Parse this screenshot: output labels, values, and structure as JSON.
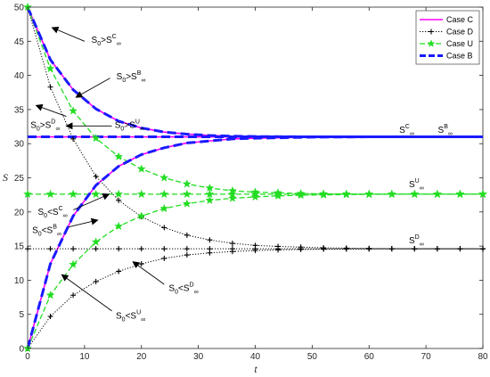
{
  "chart_data": {
    "type": "line",
    "title": "",
    "xlabel": "t",
    "ylabel": "S",
    "xlim": [
      0,
      80
    ],
    "ylim": [
      0,
      50
    ],
    "xticks": [
      0,
      10,
      20,
      30,
      40,
      50,
      60,
      70,
      80
    ],
    "yticks": [
      0,
      5,
      10,
      15,
      20,
      25,
      30,
      35,
      40,
      45,
      50
    ],
    "grid": false,
    "legend_position": "top-right",
    "series": [
      {
        "name": "Case C",
        "color": "#ff00ff",
        "style": "solid",
        "marker": "none",
        "equilibrium": 31.0,
        "curves": [
          {
            "x": [
              0,
              4,
              8,
              12,
              16,
              20,
              24,
              28,
              32,
              36,
              40,
              50,
              60,
              70,
              80
            ],
            "y": [
              50,
              42.3,
              37.9,
              35.1,
              33.3,
              32.3,
              31.7,
              31.4,
              31.2,
              31.1,
              31.05,
              31.0,
              31.0,
              31.0,
              31.0
            ]
          },
          {
            "x": [
              0,
              4,
              8,
              12,
              16,
              20,
              24,
              28,
              32,
              36,
              40,
              50,
              60,
              70,
              80
            ],
            "y": [
              0,
              12.4,
              19.4,
              23.9,
              26.7,
              28.4,
              29.4,
              30.1,
              30.4,
              30.7,
              30.8,
              30.95,
              31.0,
              31.0,
              31.0
            ]
          },
          {
            "x": [
              0,
              80
            ],
            "y": [
              31,
              31
            ]
          }
        ]
      },
      {
        "name": "Case D",
        "color": "#000000",
        "style": "dotted",
        "marker": "+",
        "equilibrium": 14.6,
        "curves": [
          {
            "x": [
              0,
              4,
              8,
              12,
              16,
              20,
              24,
              28,
              32,
              36,
              40,
              44,
              48,
              52,
              56,
              60,
              64,
              68,
              72,
              76,
              80
            ],
            "y": [
              50,
              38.3,
              30.7,
              25.2,
              21.7,
              19.3,
              17.7,
              16.6,
              15.9,
              15.4,
              15.1,
              14.95,
              14.85,
              14.75,
              14.7,
              14.65,
              14.62,
              14.6,
              14.6,
              14.6,
              14.6
            ]
          },
          {
            "x": [
              0,
              4,
              8,
              12,
              16,
              20,
              24,
              28,
              32,
              36,
              40,
              44,
              48,
              52,
              56,
              60,
              64,
              68,
              72,
              76,
              80
            ],
            "y": [
              0,
              4.7,
              7.8,
              9.8,
              11.3,
              12.4,
              13.2,
              13.7,
              14.0,
              14.2,
              14.35,
              14.45,
              14.5,
              14.55,
              14.57,
              14.58,
              14.6,
              14.6,
              14.6,
              14.6,
              14.6
            ]
          },
          {
            "x": [
              0,
              4,
              8,
              12,
              16,
              20,
              24,
              28,
              32,
              36,
              40,
              44,
              48,
              52,
              56,
              60,
              64,
              68,
              72,
              76,
              80
            ],
            "y": [
              14.6,
              14.6,
              14.6,
              14.6,
              14.6,
              14.6,
              14.6,
              14.6,
              14.6,
              14.6,
              14.6,
              14.6,
              14.6,
              14.6,
              14.6,
              14.6,
              14.6,
              14.6,
              14.6,
              14.6,
              14.6
            ]
          }
        ]
      },
      {
        "name": "Case U",
        "color": "#22dd22",
        "style": "dashed",
        "marker": "star",
        "equilibrium": 22.6,
        "curves": [
          {
            "x": [
              0,
              4,
              8,
              12,
              16,
              20,
              24,
              28,
              32,
              36,
              40,
              44,
              48,
              52,
              56,
              60,
              64,
              68,
              72,
              76,
              80
            ],
            "y": [
              50,
              41.0,
              34.8,
              30.8,
              28.1,
              26.3,
              25.0,
              24.1,
              23.5,
              23.1,
              22.9,
              22.8,
              22.7,
              22.65,
              22.62,
              22.6,
              22.6,
              22.6,
              22.6,
              22.6,
              22.6
            ]
          },
          {
            "x": [
              0,
              4,
              8,
              12,
              16,
              20,
              24,
              28,
              32,
              36,
              40,
              44,
              48,
              52,
              56,
              60,
              64,
              68,
              72,
              76,
              80
            ],
            "y": [
              0,
              7.8,
              12.3,
              15.6,
              17.9,
              19.4,
              20.5,
              21.2,
              21.7,
              22.0,
              22.2,
              22.35,
              22.45,
              22.5,
              22.55,
              22.58,
              22.6,
              22.6,
              22.6,
              22.6,
              22.6
            ]
          },
          {
            "x": [
              0,
              4,
              8,
              12,
              16,
              20,
              24,
              28,
              32,
              36,
              40,
              44,
              48,
              52,
              56,
              60,
              64,
              68,
              72,
              76,
              80
            ],
            "y": [
              22.6,
              22.6,
              22.6,
              22.6,
              22.6,
              22.6,
              22.6,
              22.6,
              22.6,
              22.6,
              22.6,
              22.6,
              22.6,
              22.6,
              22.6,
              22.6,
              22.6,
              22.6,
              22.6,
              22.6,
              22.6
            ]
          }
        ]
      },
      {
        "name": "Case B",
        "color": "#1a1aff",
        "style": "dashed",
        "marker": "none",
        "equilibrium": 31.0,
        "curves": [
          {
            "x": [
              0,
              4,
              8,
              12,
              16,
              20,
              24,
              28,
              32,
              36,
              40,
              50,
              60,
              70,
              80
            ],
            "y": [
              50,
              42.3,
              37.9,
              35.1,
              33.3,
              32.3,
              31.7,
              31.4,
              31.2,
              31.1,
              31.05,
              31.0,
              31.0,
              31.0,
              31.0
            ]
          },
          {
            "x": [
              0,
              4,
              8,
              12,
              16,
              20,
              24,
              28,
              32,
              36,
              40,
              50,
              60,
              70,
              80
            ],
            "y": [
              0,
              12.4,
              19.4,
              23.9,
              26.7,
              28.4,
              29.4,
              30.1,
              30.4,
              30.7,
              30.8,
              30.95,
              31.0,
              31.0,
              31.0
            ]
          },
          {
            "x": [
              0,
              80
            ],
            "y": [
              31,
              31
            ]
          }
        ]
      }
    ],
    "annotations": [
      {
        "id": "s0-gt-sc",
        "text": "S",
        "sub": "0",
        "rel": ">S",
        "sup": "C",
        "sub2": "∞",
        "tx": 11.2,
        "ty": 44.8,
        "arrow_from": [
          10.0,
          45.0
        ],
        "arrow_to": [
          4.3,
          47.0
        ]
      },
      {
        "id": "s0-gt-sb",
        "text": "S",
        "sub": "0",
        "rel": ">S",
        "sup": "B",
        "sub2": "∞",
        "tx": 15.6,
        "ty": 39.4,
        "arrow_from": [
          14.5,
          39.6
        ],
        "arrow_to": [
          8.5,
          36.8
        ]
      },
      {
        "id": "s0-gt-sd",
        "text": "S",
        "sub": "0",
        "rel": ">S",
        "sup": "D",
        "sub2": "∞",
        "tx": 0.5,
        "ty": 32.3,
        "arrow_from": [
          6.8,
          34.0
        ],
        "arrow_to": [
          1.5,
          35.6
        ]
      },
      {
        "id": "s0-gt-su",
        "text": "S",
        "sub": "0",
        "rel": ">S",
        "sup": "U",
        "sub2": "∞",
        "tx": 15.3,
        "ty": 32.3,
        "arrow_from": [
          14.8,
          32.6
        ],
        "arrow_to": [
          6.8,
          32.6
        ]
      },
      {
        "id": "s0-lt-sc",
        "text": "S",
        "sub": "0",
        "rel": "<S",
        "sup": "C",
        "sub2": "∞",
        "tx": 1.8,
        "ty": 19.6,
        "arrow_from": [
          8.0,
          20.3
        ],
        "arrow_to": [
          14.3,
          22.6
        ]
      },
      {
        "id": "s0-lt-sb",
        "text": "S",
        "sub": "0",
        "rel": "<S",
        "sup": "B",
        "sub2": "∞",
        "tx": 0.8,
        "ty": 16.9,
        "arrow_from": [
          7.2,
          17.8
        ],
        "arrow_to": [
          12.3,
          18.8
        ]
      },
      {
        "id": "s0-lt-sd",
        "text": "S",
        "sub": "0",
        "rel": "<S",
        "sup": "D",
        "sub2": "∞",
        "tx": 24.8,
        "ty": 8.4,
        "arrow_from": [
          24.0,
          9.4
        ],
        "arrow_to": [
          18.5,
          12.7
        ]
      },
      {
        "id": "s0-lt-su",
        "text": "S",
        "sub": "0",
        "rel": "<S",
        "sup": "U",
        "sub2": "∞",
        "tx": 15.5,
        "ty": 4.4,
        "arrow_from": [
          14.8,
          5.5
        ],
        "arrow_to": [
          6.0,
          10.8
        ]
      },
      {
        "id": "sc-inf",
        "text": "S",
        "sup": "C",
        "sub2": "∞",
        "tx": 65.3,
        "ty": 31.6
      },
      {
        "id": "sb-inf",
        "text": "S",
        "sup": "B",
        "sub2": "∞",
        "tx": 72.1,
        "ty": 31.6
      },
      {
        "id": "su-inf",
        "text": "S",
        "sup": "U",
        "sub2": "∞",
        "tx": 67.0,
        "ty": 23.6
      },
      {
        "id": "sd-inf",
        "text": "S",
        "sup": "D",
        "sub2": "∞",
        "tx": 67.0,
        "ty": 15.4
      }
    ]
  }
}
